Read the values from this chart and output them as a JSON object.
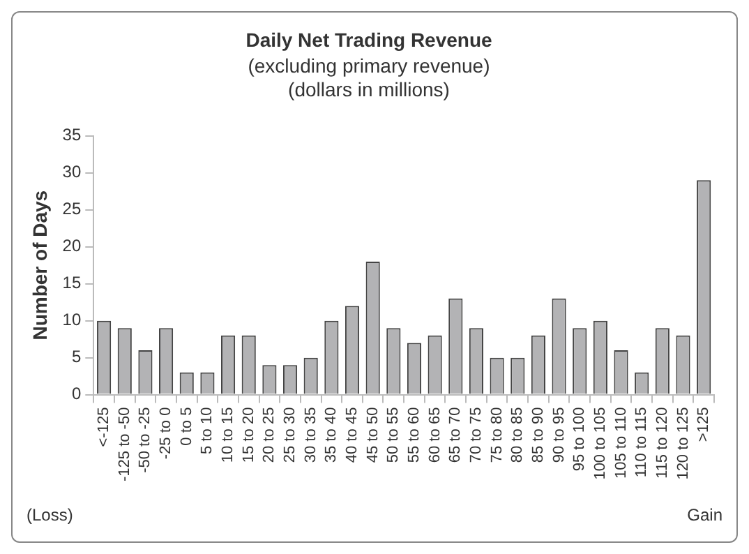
{
  "chart_data": {
    "type": "bar",
    "title": "Daily Net Trading Revenue",
    "subtitle": "(excluding primary revenue)\n(dollars in millions)",
    "ylabel": "Number of Days",
    "categories": [
      "<-125",
      "-125 to -50",
      "-50 to -25",
      "-25 to 0",
      "0 to 5",
      "5 to 10",
      "10 to 15",
      "15 to 20",
      "20 to 25",
      "25 to 30",
      "30 to 35",
      "35 to 40",
      "40 to 45",
      "45 to 50",
      "50 to 55",
      "55 to 60",
      "60 to 65",
      "65 to 70",
      "70 to 75",
      "75 to 80",
      "80 to 85",
      "85 to 90",
      "90 to 95",
      "95 to 100",
      "100 to 105",
      "105 to 110",
      "110 to 115",
      "115 to 120",
      "120 to 125",
      ">125"
    ],
    "values": [
      10,
      9,
      6,
      9,
      3,
      3,
      8,
      8,
      4,
      4,
      5,
      10,
      12,
      18,
      9,
      7,
      8,
      13,
      9,
      5,
      5,
      8,
      13,
      9,
      10,
      6,
      3,
      9,
      8,
      29
    ],
    "color": "#b3b3b5",
    "ylim": [
      0,
      35
    ],
    "yticks": [
      0,
      5,
      10,
      15,
      20,
      25,
      30,
      35
    ],
    "grid": false,
    "legend": false,
    "annotations": [
      "(Loss)",
      "Gain"
    ]
  }
}
